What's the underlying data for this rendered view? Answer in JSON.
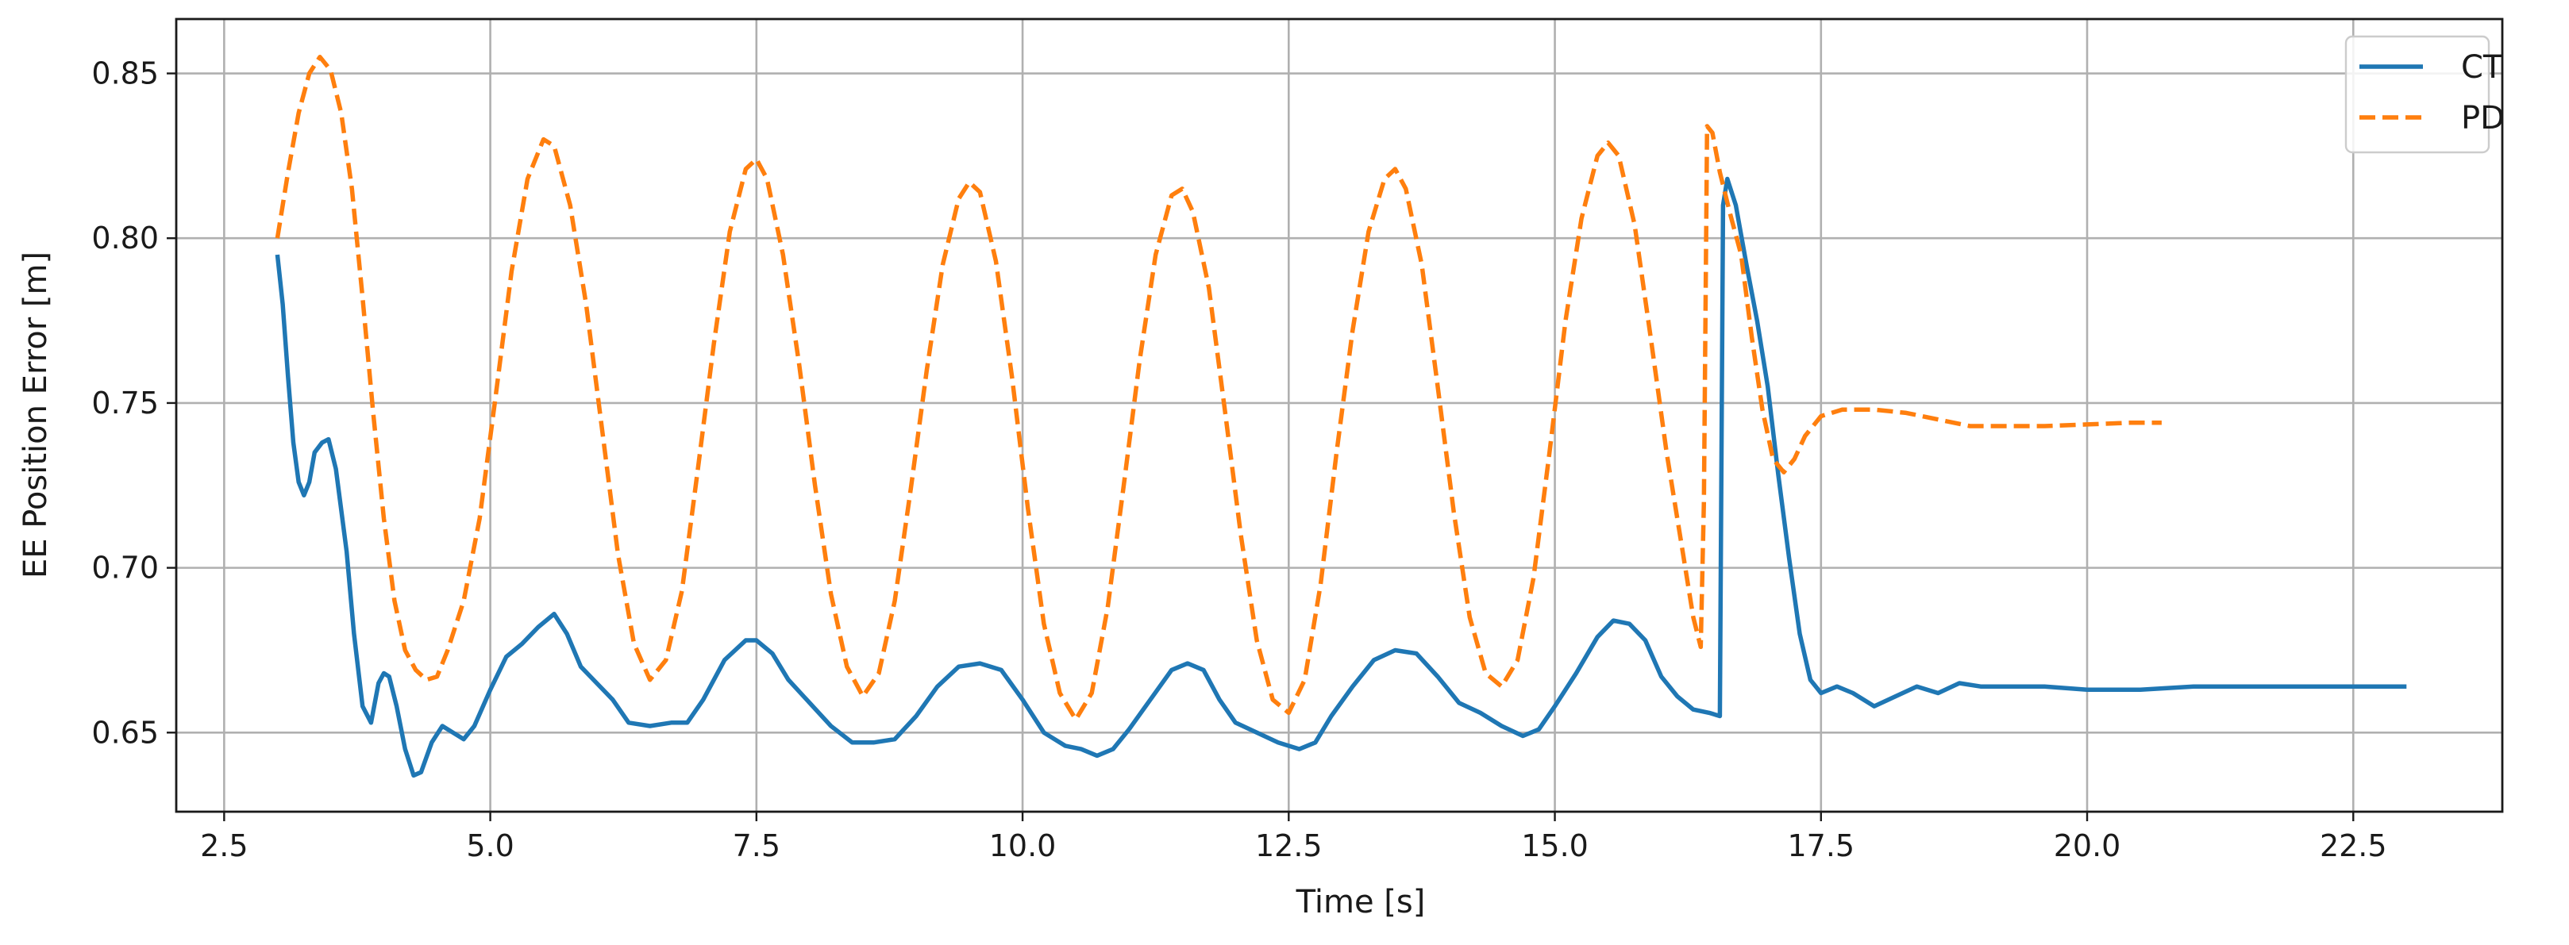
{
  "chart_data": {
    "type": "line",
    "title": "",
    "xlabel": "Time [s]",
    "ylabel": "EE Position Error [m]",
    "xlim": [
      2.05,
      23.9
    ],
    "ylim": [
      0.626,
      0.8665
    ],
    "xticks": [
      2.5,
      5.0,
      7.5,
      10.0,
      12.5,
      15.0,
      17.5,
      20.0,
      22.5
    ],
    "xtick_labels": [
      "2.5",
      "5.0",
      "7.5",
      "10.0",
      "12.5",
      "15.0",
      "17.5",
      "20.0",
      "22.5"
    ],
    "yticks": [
      0.65,
      0.7,
      0.75,
      0.8,
      0.85
    ],
    "ytick_labels": [
      "0.65",
      "0.70",
      "0.75",
      "0.80",
      "0.85"
    ],
    "grid": true,
    "legend_position": "top-right",
    "series": [
      {
        "name": "CT",
        "color": "#1f77b4",
        "dash": "solid",
        "points": [
          [
            3.0,
            0.795
          ],
          [
            3.05,
            0.78
          ],
          [
            3.1,
            0.758
          ],
          [
            3.15,
            0.738
          ],
          [
            3.2,
            0.726
          ],
          [
            3.25,
            0.722
          ],
          [
            3.3,
            0.726
          ],
          [
            3.35,
            0.735
          ],
          [
            3.42,
            0.738
          ],
          [
            3.48,
            0.739
          ],
          [
            3.55,
            0.73
          ],
          [
            3.65,
            0.705
          ],
          [
            3.72,
            0.68
          ],
          [
            3.8,
            0.658
          ],
          [
            3.88,
            0.653
          ],
          [
            3.95,
            0.665
          ],
          [
            4.0,
            0.668
          ],
          [
            4.05,
            0.667
          ],
          [
            4.12,
            0.658
          ],
          [
            4.2,
            0.645
          ],
          [
            4.28,
            0.637
          ],
          [
            4.35,
            0.638
          ],
          [
            4.45,
            0.647
          ],
          [
            4.55,
            0.652
          ],
          [
            4.65,
            0.65
          ],
          [
            4.75,
            0.648
          ],
          [
            4.85,
            0.652
          ],
          [
            5.0,
            0.663
          ],
          [
            5.15,
            0.673
          ],
          [
            5.3,
            0.677
          ],
          [
            5.45,
            0.682
          ],
          [
            5.6,
            0.686
          ],
          [
            5.72,
            0.68
          ],
          [
            5.85,
            0.67
          ],
          [
            6.0,
            0.665
          ],
          [
            6.15,
            0.66
          ],
          [
            6.3,
            0.653
          ],
          [
            6.5,
            0.652
          ],
          [
            6.7,
            0.653
          ],
          [
            6.85,
            0.653
          ],
          [
            7.0,
            0.66
          ],
          [
            7.2,
            0.672
          ],
          [
            7.4,
            0.678
          ],
          [
            7.5,
            0.678
          ],
          [
            7.65,
            0.674
          ],
          [
            7.8,
            0.666
          ],
          [
            8.0,
            0.659
          ],
          [
            8.2,
            0.652
          ],
          [
            8.4,
            0.647
          ],
          [
            8.6,
            0.647
          ],
          [
            8.8,
            0.648
          ],
          [
            9.0,
            0.655
          ],
          [
            9.2,
            0.664
          ],
          [
            9.4,
            0.67
          ],
          [
            9.6,
            0.671
          ],
          [
            9.8,
            0.669
          ],
          [
            10.0,
            0.66
          ],
          [
            10.2,
            0.65
          ],
          [
            10.4,
            0.646
          ],
          [
            10.55,
            0.645
          ],
          [
            10.7,
            0.643
          ],
          [
            10.85,
            0.645
          ],
          [
            11.0,
            0.651
          ],
          [
            11.2,
            0.66
          ],
          [
            11.4,
            0.669
          ],
          [
            11.55,
            0.671
          ],
          [
            11.7,
            0.669
          ],
          [
            11.85,
            0.66
          ],
          [
            12.0,
            0.653
          ],
          [
            12.2,
            0.65
          ],
          [
            12.4,
            0.647
          ],
          [
            12.6,
            0.645
          ],
          [
            12.75,
            0.647
          ],
          [
            12.9,
            0.655
          ],
          [
            13.1,
            0.664
          ],
          [
            13.3,
            0.672
          ],
          [
            13.5,
            0.675
          ],
          [
            13.7,
            0.674
          ],
          [
            13.9,
            0.667
          ],
          [
            14.1,
            0.659
          ],
          [
            14.3,
            0.656
          ],
          [
            14.5,
            0.652
          ],
          [
            14.7,
            0.649
          ],
          [
            14.85,
            0.651
          ],
          [
            15.0,
            0.658
          ],
          [
            15.2,
            0.668
          ],
          [
            15.4,
            0.679
          ],
          [
            15.55,
            0.684
          ],
          [
            15.7,
            0.683
          ],
          [
            15.85,
            0.678
          ],
          [
            16.0,
            0.667
          ],
          [
            16.15,
            0.661
          ],
          [
            16.3,
            0.657
          ],
          [
            16.45,
            0.656
          ],
          [
            16.55,
            0.655
          ],
          [
            16.58,
            0.81
          ],
          [
            16.62,
            0.818
          ],
          [
            16.7,
            0.81
          ],
          [
            16.8,
            0.792
          ],
          [
            16.9,
            0.775
          ],
          [
            17.0,
            0.755
          ],
          [
            17.1,
            0.728
          ],
          [
            17.2,
            0.703
          ],
          [
            17.3,
            0.68
          ],
          [
            17.4,
            0.666
          ],
          [
            17.5,
            0.662
          ],
          [
            17.65,
            0.664
          ],
          [
            17.8,
            0.662
          ],
          [
            18.0,
            0.658
          ],
          [
            18.2,
            0.661
          ],
          [
            18.4,
            0.664
          ],
          [
            18.6,
            0.662
          ],
          [
            18.8,
            0.665
          ],
          [
            19.0,
            0.664
          ],
          [
            19.3,
            0.664
          ],
          [
            19.6,
            0.664
          ],
          [
            20.0,
            0.663
          ],
          [
            20.5,
            0.663
          ],
          [
            21.0,
            0.664
          ],
          [
            22.0,
            0.664
          ],
          [
            23.0,
            0.664
          ]
        ]
      },
      {
        "name": "PD",
        "color": "#ff7f0e",
        "dash": "dashed",
        "points": [
          [
            3.0,
            0.8
          ],
          [
            3.1,
            0.82
          ],
          [
            3.2,
            0.838
          ],
          [
            3.3,
            0.85
          ],
          [
            3.4,
            0.855
          ],
          [
            3.5,
            0.851
          ],
          [
            3.6,
            0.838
          ],
          [
            3.7,
            0.815
          ],
          [
            3.8,
            0.782
          ],
          [
            3.9,
            0.747
          ],
          [
            4.0,
            0.715
          ],
          [
            4.1,
            0.69
          ],
          [
            4.2,
            0.675
          ],
          [
            4.3,
            0.669
          ],
          [
            4.4,
            0.666
          ],
          [
            4.5,
            0.667
          ],
          [
            4.6,
            0.675
          ],
          [
            4.75,
            0.69
          ],
          [
            4.9,
            0.715
          ],
          [
            5.05,
            0.752
          ],
          [
            5.2,
            0.79
          ],
          [
            5.35,
            0.818
          ],
          [
            5.5,
            0.83
          ],
          [
            5.6,
            0.828
          ],
          [
            5.75,
            0.81
          ],
          [
            5.9,
            0.78
          ],
          [
            6.05,
            0.742
          ],
          [
            6.2,
            0.704
          ],
          [
            6.35,
            0.677
          ],
          [
            6.5,
            0.666
          ],
          [
            6.65,
            0.672
          ],
          [
            6.8,
            0.693
          ],
          [
            6.95,
            0.73
          ],
          [
            7.1,
            0.768
          ],
          [
            7.25,
            0.802
          ],
          [
            7.4,
            0.821
          ],
          [
            7.5,
            0.824
          ],
          [
            7.6,
            0.818
          ],
          [
            7.75,
            0.795
          ],
          [
            7.9,
            0.762
          ],
          [
            8.05,
            0.725
          ],
          [
            8.2,
            0.692
          ],
          [
            8.35,
            0.67
          ],
          [
            8.5,
            0.661
          ],
          [
            8.65,
            0.668
          ],
          [
            8.8,
            0.69
          ],
          [
            8.95,
            0.724
          ],
          [
            9.1,
            0.76
          ],
          [
            9.25,
            0.792
          ],
          [
            9.4,
            0.812
          ],
          [
            9.5,
            0.817
          ],
          [
            9.6,
            0.814
          ],
          [
            9.75,
            0.793
          ],
          [
            9.9,
            0.758
          ],
          [
            10.05,
            0.718
          ],
          [
            10.2,
            0.683
          ],
          [
            10.35,
            0.662
          ],
          [
            10.5,
            0.654
          ],
          [
            10.65,
            0.662
          ],
          [
            10.8,
            0.688
          ],
          [
            10.95,
            0.725
          ],
          [
            11.1,
            0.763
          ],
          [
            11.25,
            0.795
          ],
          [
            11.4,
            0.813
          ],
          [
            11.5,
            0.815
          ],
          [
            11.6,
            0.808
          ],
          [
            11.75,
            0.785
          ],
          [
            11.9,
            0.748
          ],
          [
            12.05,
            0.71
          ],
          [
            12.2,
            0.678
          ],
          [
            12.35,
            0.66
          ],
          [
            12.5,
            0.656
          ],
          [
            12.65,
            0.666
          ],
          [
            12.8,
            0.695
          ],
          [
            12.95,
            0.735
          ],
          [
            13.1,
            0.772
          ],
          [
            13.25,
            0.802
          ],
          [
            13.4,
            0.818
          ],
          [
            13.5,
            0.821
          ],
          [
            13.6,
            0.815
          ],
          [
            13.75,
            0.792
          ],
          [
            13.9,
            0.755
          ],
          [
            14.05,
            0.717
          ],
          [
            14.2,
            0.685
          ],
          [
            14.35,
            0.668
          ],
          [
            14.5,
            0.664
          ],
          [
            14.65,
            0.672
          ],
          [
            14.8,
            0.697
          ],
          [
            14.95,
            0.735
          ],
          [
            15.1,
            0.775
          ],
          [
            15.25,
            0.806
          ],
          [
            15.4,
            0.825
          ],
          [
            15.5,
            0.829
          ],
          [
            15.6,
            0.825
          ],
          [
            15.75,
            0.804
          ],
          [
            15.9,
            0.77
          ],
          [
            16.05,
            0.735
          ],
          [
            16.2,
            0.705
          ],
          [
            16.3,
            0.685
          ],
          [
            16.37,
            0.676
          ],
          [
            16.4,
            0.72
          ],
          [
            16.43,
            0.834
          ],
          [
            16.48,
            0.832
          ],
          [
            16.55,
            0.82
          ],
          [
            16.65,
            0.807
          ],
          [
            16.75,
            0.795
          ],
          [
            16.85,
            0.77
          ],
          [
            16.95,
            0.748
          ],
          [
            17.05,
            0.733
          ],
          [
            17.15,
            0.729
          ],
          [
            17.25,
            0.733
          ],
          [
            17.35,
            0.74
          ],
          [
            17.5,
            0.746
          ],
          [
            17.7,
            0.748
          ],
          [
            18.0,
            0.748
          ],
          [
            18.3,
            0.747
          ],
          [
            18.6,
            0.745
          ],
          [
            18.9,
            0.743
          ],
          [
            19.2,
            0.743
          ],
          [
            19.6,
            0.743
          ],
          [
            20.0,
            0.7435
          ],
          [
            20.4,
            0.744
          ],
          [
            20.7,
            0.744
          ]
        ]
      }
    ]
  }
}
